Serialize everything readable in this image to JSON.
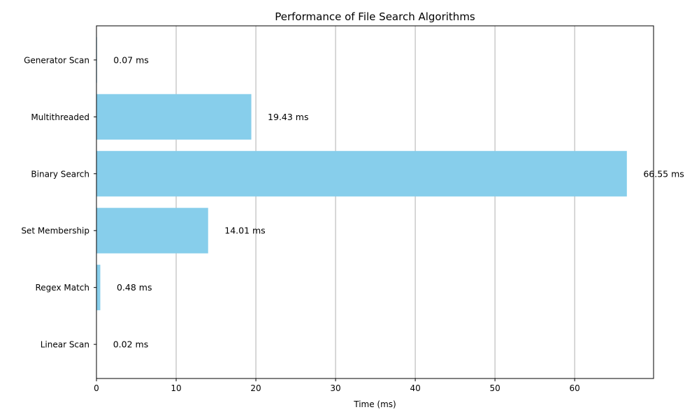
{
  "chart_data": {
    "type": "bar",
    "orientation": "horizontal",
    "title": "Performance of File Search Algorithms",
    "xlabel": "Time (ms)",
    "ylabel": "",
    "categories": [
      "Linear Scan",
      "Regex Match",
      "Set Membership",
      "Binary Search",
      "Multithreaded",
      "Generator Scan"
    ],
    "values": [
      0.02,
      0.48,
      14.01,
      66.55,
      19.43,
      0.07
    ],
    "data_labels": [
      "0.02 ms",
      "0.48 ms",
      "14.01 ms",
      "66.55 ms",
      "19.43 ms",
      "0.07 ms"
    ],
    "xlim": [
      0,
      69.9
    ],
    "xticks": [
      0,
      10,
      20,
      30,
      40,
      50,
      60
    ],
    "grid": "x-axis vertical lines",
    "bar_color": "#87ceeb",
    "grid_color": "#b0b0b0"
  }
}
